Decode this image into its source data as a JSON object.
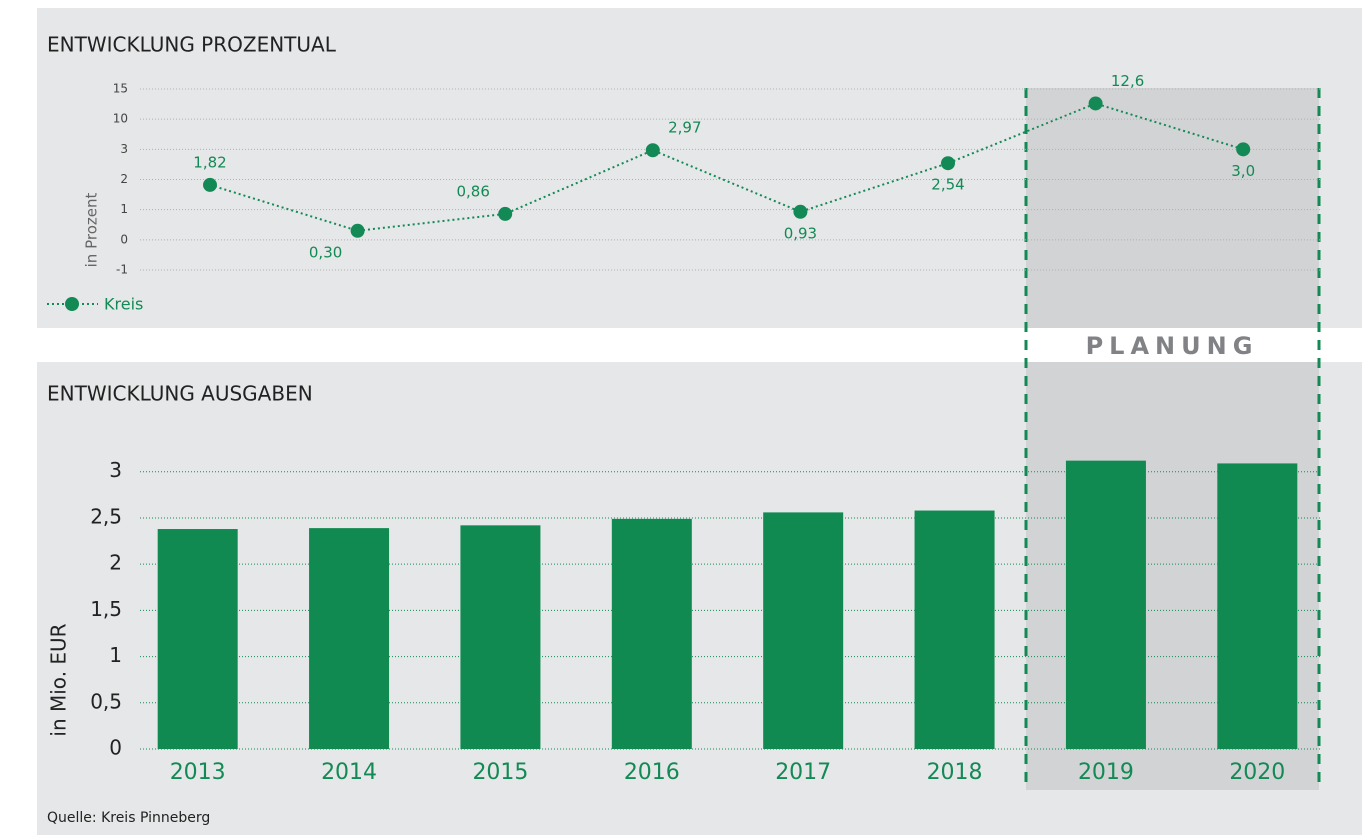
{
  "chart_data": [
    {
      "type": "line",
      "title": "ENTWICKLUNG PROZENTUAL",
      "y_label": "in Prozent",
      "series": [
        {
          "name": "Kreis",
          "color": "#138a55",
          "values": [
            1.82,
            0.3,
            0.86,
            2.97,
            0.93,
            2.54,
            12.6,
            3.0
          ],
          "value_labels": [
            "1,82",
            "0,30",
            "0,86",
            "2,97",
            "0,93",
            "2,54",
            "12,6",
            "3,0"
          ]
        }
      ],
      "ylim": [
        -1,
        15
      ],
      "yticks": [
        -1,
        0,
        1,
        2,
        3,
        10,
        15
      ],
      "grid": true,
      "legend": "bottom-left"
    },
    {
      "type": "bar",
      "title": "ENTWICKLUNG AUSGABEN",
      "y_label": "in Mio. EUR",
      "categories": [
        "2013",
        "2014",
        "2015",
        "2016",
        "2017",
        "2018",
        "2019",
        "2020"
      ],
      "values": [
        2.38,
        2.39,
        2.42,
        2.49,
        2.56,
        2.58,
        3.12,
        3.09
      ],
      "color": "#118a52",
      "ylim": [
        0,
        3.3
      ],
      "yticks": [
        0,
        {
          "value": 0.5,
          "label": "0,5"
        },
        1,
        {
          "value": 1.5,
          "label": "1,5"
        },
        2,
        {
          "value": 2.5,
          "label": "2,5"
        },
        3
      ],
      "grid": true
    }
  ],
  "annotation": "PLANUNG",
  "source": "Quelle: Kreis Pinneberg"
}
